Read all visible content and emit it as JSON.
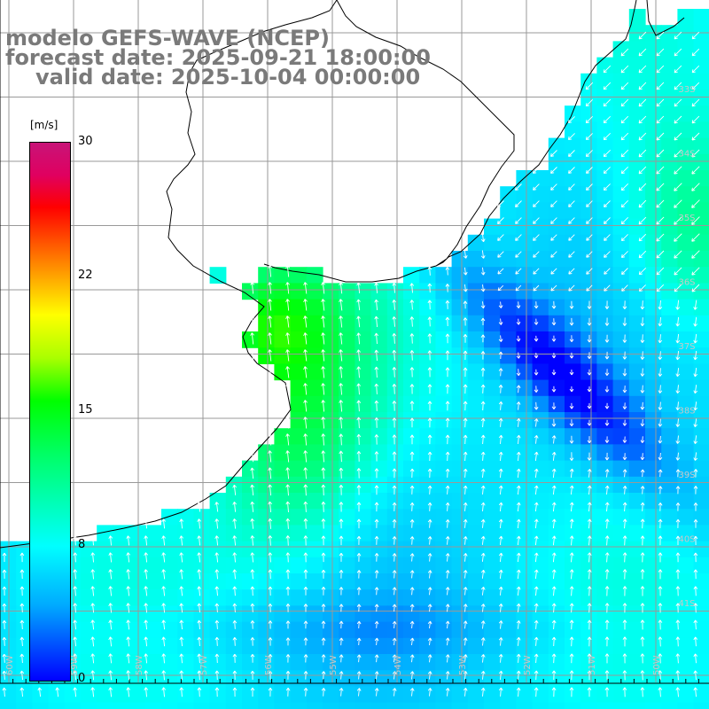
{
  "header": {
    "line1": "modelo GEFS-WAVE (NCEP)",
    "line2": "forecast date: 2025-09-21 18:00:00",
    "line3": "valid date: 2025-10-04 00:00:00"
  },
  "colorbar": {
    "unit": "[m/s]",
    "ticks": [
      {
        "label": "30",
        "value": 30
      },
      {
        "label": "22",
        "value": 22
      },
      {
        "label": "15",
        "value": 15
      },
      {
        "label": "8",
        "value": 8
      },
      {
        "label": "0",
        "value": 0
      }
    ],
    "colors": [
      "#0000ff",
      "#00aaff",
      "#00ffff",
      "#00ff66",
      "#00ff00",
      "#aaff00",
      "#ffff00",
      "#ff9900",
      "#ff3300",
      "#ff0000",
      "#c81478"
    ]
  },
  "map": {
    "land_color": "#ffffff",
    "grid_color": "#999999",
    "coast_color": "#000000",
    "arrow_color": "#ffffff",
    "lat_labels": [
      "33S",
      "34S",
      "35S",
      "36S",
      "37S",
      "38S",
      "39S",
      "40S",
      "41S"
    ],
    "lon_labels": [
      "60W",
      "59W",
      "58W",
      "57W",
      "56W",
      "55W",
      "54W",
      "53W",
      "52W",
      "51W",
      "50W"
    ]
  }
}
